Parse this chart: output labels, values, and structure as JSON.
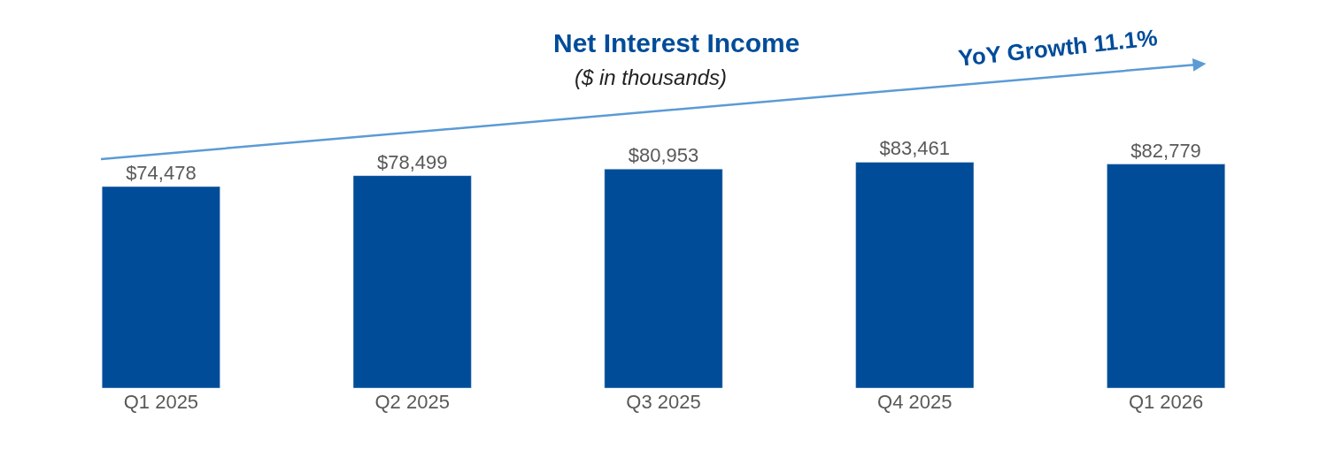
{
  "chart_data": {
    "type": "bar",
    "title": "Net Interest Income",
    "subtitle": "($ in thousands)",
    "categories": [
      "Q1 2025",
      "Q2 2025",
      "Q3 2025",
      "Q4 2025",
      "Q1 2026"
    ],
    "values": [
      74478,
      78499,
      80953,
      83461,
      82779
    ],
    "value_labels": [
      "$74,478",
      "$78,499",
      "$80,953",
      "$83,461",
      "$82,779"
    ],
    "color": "#004c99",
    "annotations": [
      "YoY Growth 11.1%"
    ],
    "legend": false
  }
}
